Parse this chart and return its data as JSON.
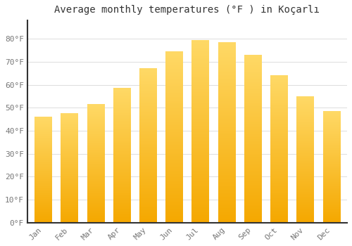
{
  "title": "Average monthly temperatures (°F ) in Koçarlı",
  "months": [
    "Jan",
    "Feb",
    "Mar",
    "Apr",
    "May",
    "Jun",
    "Jul",
    "Aug",
    "Sep",
    "Oct",
    "Nov",
    "Dec"
  ],
  "values": [
    46.0,
    47.5,
    51.5,
    58.5,
    67.0,
    74.5,
    79.5,
    78.5,
    73.0,
    64.0,
    55.0,
    48.5
  ],
  "bar_color_left": "#F5A800",
  "bar_color_right": "#FFD966",
  "ylim": [
    0,
    88
  ],
  "yticks": [
    0,
    10,
    20,
    30,
    40,
    50,
    60,
    70,
    80
  ],
  "ytick_labels": [
    "0°F",
    "10°F",
    "20°F",
    "30°F",
    "40°F",
    "50°F",
    "60°F",
    "70°F",
    "80°F"
  ],
  "bg_color": "#FFFFFF",
  "plot_bg_color": "#FFFFFF",
  "grid_color": "#DDDDDD",
  "title_fontsize": 10,
  "tick_fontsize": 8,
  "tick_color": "#777777",
  "spine_color": "#333333"
}
